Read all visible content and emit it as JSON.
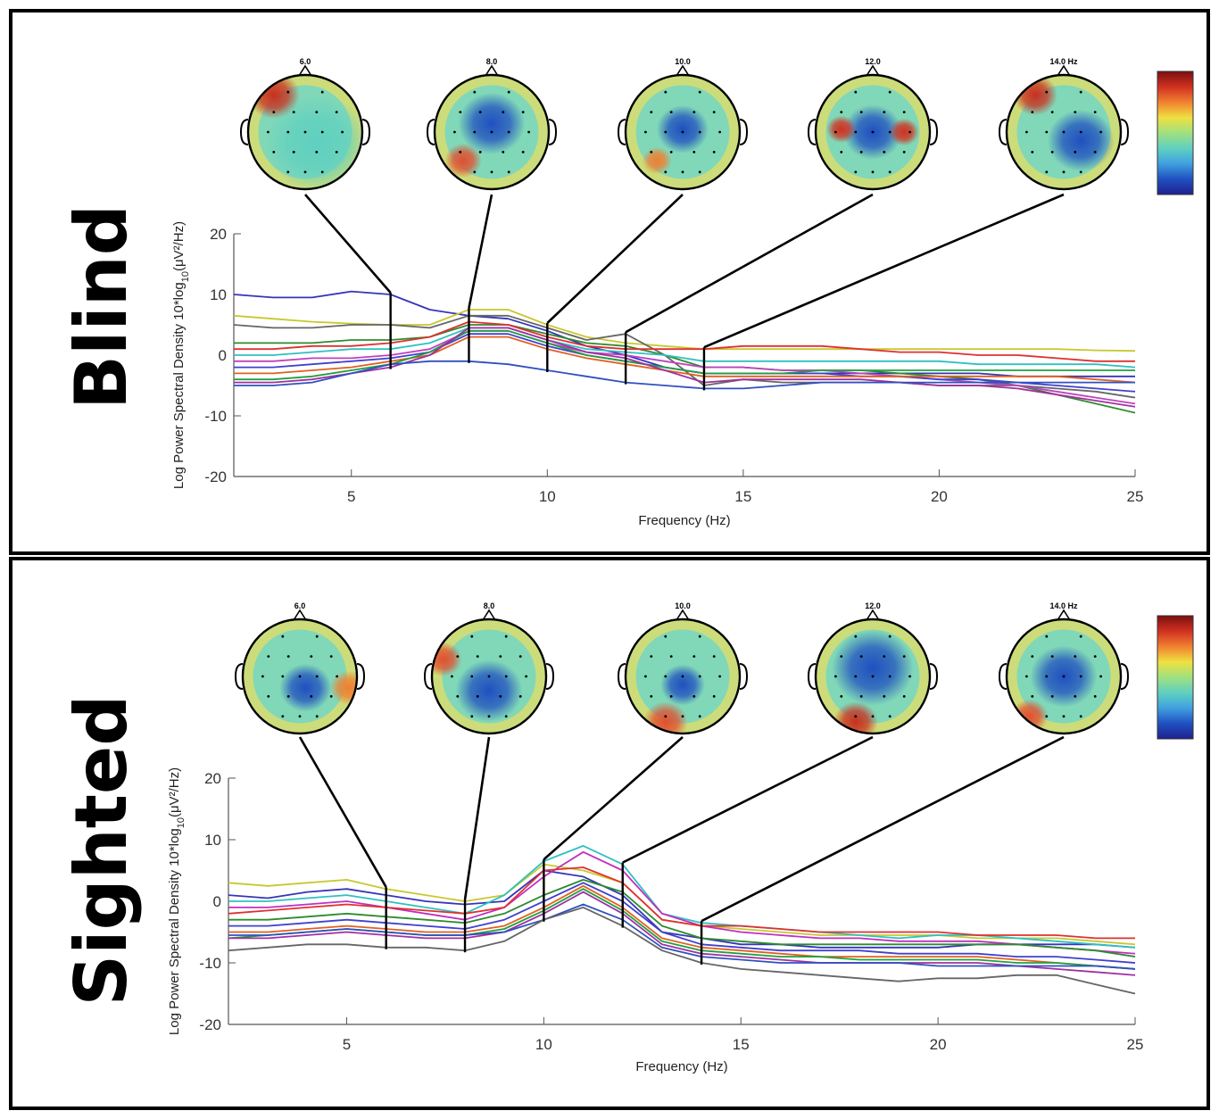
{
  "chart_data": [
    {
      "type": "line",
      "group": "Blind",
      "xlabel": "Frequency (Hz)",
      "ylabel_main": "Log Power Spectral Density 10*log",
      "ylabel_sub": "10",
      "ylabel_tail": "(μV²/Hz)",
      "xlim": [
        2,
        25
      ],
      "ylim": [
        -20,
        20
      ],
      "xticks": [
        5,
        10,
        15,
        20,
        25
      ],
      "yticks": [
        20,
        10,
        0,
        -10,
        -20
      ],
      "xtick_labels": [
        "5",
        "10",
        "15",
        "20",
        "25"
      ],
      "ytick_labels": [
        "20",
        "10",
        "0",
        "-10",
        "-20"
      ],
      "topo_labels": [
        "6.0",
        "8.0",
        "10.0",
        "12.0",
        "14.0 Hz"
      ],
      "topo_freqs": [
        6,
        8,
        10,
        12,
        14
      ],
      "x": [
        2,
        3,
        4,
        5,
        6,
        7,
        8,
        9,
        10,
        11,
        12,
        13,
        14,
        15,
        16,
        17,
        18,
        19,
        20,
        21,
        22,
        23,
        24,
        25
      ],
      "series": [
        {
          "color": "#3535b8",
          "values": [
            10,
            9.5,
            9.5,
            10.5,
            10,
            7.5,
            6.5,
            6,
            4,
            1.5,
            0,
            -2,
            -3,
            -3,
            -3,
            -3,
            -3,
            -3,
            -3,
            -3,
            -3.5,
            -3.5,
            -3.5,
            -3.5
          ]
        },
        {
          "color": "#c8c830",
          "values": [
            6.5,
            6,
            5.5,
            5.2,
            5,
            5,
            7.5,
            7.5,
            5,
            3,
            2,
            1.5,
            1,
            1,
            1,
            1,
            1,
            1,
            1,
            1,
            1,
            1,
            0.8,
            0.7
          ]
        },
        {
          "color": "#666666",
          "values": [
            5,
            4.5,
            4.5,
            5,
            5,
            4.5,
            6.5,
            6.5,
            4.5,
            2.5,
            3.5,
            0,
            -5,
            -4,
            -4.5,
            -4.5,
            -4.5,
            -4.5,
            -5,
            -5,
            -5,
            -5.5,
            -6,
            -7
          ]
        },
        {
          "color": "#2e8b2e",
          "values": [
            2,
            2,
            2,
            2.5,
            2.5,
            3,
            5,
            5,
            3.5,
            2,
            1.5,
            0,
            -2,
            -2,
            -2.5,
            -2.5,
            -2.5,
            -3,
            -3.5,
            -4,
            -5,
            -6.5,
            -8,
            -9.5
          ]
        },
        {
          "color": "#e03030",
          "values": [
            1,
            1,
            1.5,
            1.5,
            2,
            3,
            5.5,
            5,
            3,
            1.5,
            1,
            1,
            1,
            1.5,
            1.5,
            1.5,
            1,
            0.5,
            0.5,
            0,
            0,
            -0.5,
            -1,
            -1
          ]
        },
        {
          "color": "#30c0c0",
          "values": [
            0,
            0,
            0.5,
            1,
            1,
            2,
            4.5,
            4.5,
            2.5,
            1,
            0.5,
            0,
            -1,
            -1,
            -1,
            -1,
            -1,
            -1,
            -1,
            -1.5,
            -1.5,
            -1.5,
            -1.5,
            -2
          ]
        },
        {
          "color": "#c040c0",
          "values": [
            -1,
            -1,
            -0.5,
            -0.5,
            0,
            1,
            4,
            4,
            2,
            0.5,
            0,
            -1,
            -2,
            -2,
            -2.5,
            -2.5,
            -3,
            -3.5,
            -4,
            -4.5,
            -5,
            -6,
            -7,
            -8
          ]
        },
        {
          "color": "#4040d0",
          "values": [
            -2,
            -2,
            -1.5,
            -1,
            -0.5,
            0.5,
            3.5,
            3.5,
            1.5,
            0,
            -1,
            -2,
            -3,
            -3,
            -3,
            -3,
            -3.5,
            -3.5,
            -4,
            -4,
            -4.5,
            -5,
            -5.5,
            -6
          ]
        },
        {
          "color": "#e06020",
          "values": [
            -3,
            -3,
            -2.5,
            -2,
            -1,
            0,
            3,
            3,
            1,
            -0.5,
            -1.5,
            -2.5,
            -3.5,
            -3.5,
            -3.5,
            -3.5,
            -3.5,
            -3.5,
            -3.5,
            -3.5,
            -3.5,
            -3.5,
            -4,
            -4.5
          ]
        },
        {
          "color": "#20a040",
          "values": [
            -4,
            -4,
            -3.5,
            -2.5,
            -1.5,
            0.5,
            4,
            4,
            2,
            0,
            -1,
            -2,
            -3,
            -3,
            -3,
            -2.5,
            -2.5,
            -2.5,
            -2.5,
            -2.5,
            -2.5,
            -2.5,
            -2.5,
            -2.5
          ]
        },
        {
          "color": "#a030a0",
          "values": [
            -4.5,
            -4.5,
            -4,
            -3,
            -2,
            0,
            4.5,
            4.5,
            2.5,
            0.5,
            -0.5,
            -2.5,
            -4.5,
            -4,
            -4,
            -4,
            -4,
            -4.5,
            -5,
            -5,
            -5.5,
            -6.5,
            -7.5,
            -8.5
          ]
        },
        {
          "color": "#3050c0",
          "values": [
            -5,
            -5,
            -4.5,
            -3,
            -1.5,
            -1,
            -1,
            -1.5,
            -2.5,
            -3.5,
            -4.5,
            -5,
            -5.5,
            -5.5,
            -5,
            -4.5,
            -4.5,
            -4.5,
            -4.5,
            -4.5,
            -4.5,
            -4.5,
            -4.5,
            -4.5
          ]
        }
      ]
    },
    {
      "type": "line",
      "group": "Sighted",
      "xlabel": "Frequency (Hz)",
      "ylabel_main": "Log Power Spectral Density 10*log",
      "ylabel_sub": "10",
      "ylabel_tail": "(μV²/Hz)",
      "xlim": [
        2,
        25
      ],
      "ylim": [
        -20,
        20
      ],
      "xticks": [
        5,
        10,
        15,
        20,
        25
      ],
      "yticks": [
        20,
        10,
        0,
        -10,
        -20
      ],
      "xtick_labels": [
        "5",
        "10",
        "15",
        "20",
        "25"
      ],
      "ytick_labels": [
        "20",
        "10",
        "0",
        "-10",
        "-20"
      ],
      "topo_labels": [
        "6.0",
        "8.0",
        "10.0",
        "12.0",
        "14.0 Hz"
      ],
      "topo_freqs": [
        6,
        8,
        10,
        12,
        14
      ],
      "x": [
        2,
        3,
        4,
        5,
        6,
        7,
        8,
        9,
        10,
        11,
        12,
        13,
        14,
        15,
        16,
        17,
        18,
        19,
        20,
        21,
        22,
        23,
        24,
        25
      ],
      "series": [
        {
          "color": "#c8c830",
          "values": [
            3,
            2.5,
            3,
            3.5,
            2,
            1,
            0,
            1,
            6,
            5,
            3,
            -3,
            -4,
            -4.5,
            -5,
            -5.5,
            -5.5,
            -5.5,
            -5.5,
            -6,
            -6,
            -6,
            -6.5,
            -7
          ]
        },
        {
          "color": "#3535b8",
          "values": [
            1,
            0.5,
            1.5,
            2,
            1,
            0,
            -0.5,
            0,
            5,
            4,
            1,
            -5,
            -6,
            -7,
            -7,
            -7.5,
            -7.5,
            -7.5,
            -7.5,
            -7,
            -7,
            -7,
            -7,
            -7.5
          ]
        },
        {
          "color": "#30c0c0",
          "values": [
            0,
            0,
            0.5,
            1,
            0,
            -1,
            -2,
            1,
            6.5,
            9,
            6,
            -2,
            -3.5,
            -4,
            -4.5,
            -5,
            -5.5,
            -6,
            -5.5,
            -5.5,
            -6,
            -6.5,
            -7,
            -7.5
          ]
        },
        {
          "color": "#c030c0",
          "values": [
            -1,
            -1,
            -0.5,
            0,
            -1,
            -2,
            -3,
            -1,
            4,
            8,
            5,
            -2,
            -4,
            -5,
            -5.5,
            -6,
            -6,
            -6.5,
            -6.5,
            -6.5,
            -7,
            -7.5,
            -8,
            -8.5
          ]
        },
        {
          "color": "#e03030",
          "values": [
            -2,
            -1.5,
            -1,
            -0.5,
            -1,
            -1.5,
            -2,
            -1,
            5,
            5.5,
            3,
            -3,
            -4,
            -4,
            -4.5,
            -5,
            -5,
            -5,
            -5,
            -5.5,
            -5.5,
            -5.5,
            -6,
            -6
          ]
        },
        {
          "color": "#2e8b2e",
          "values": [
            -3,
            -3,
            -2.5,
            -2,
            -2.5,
            -3,
            -3.5,
            -2,
            1,
            3.5,
            1.5,
            -4,
            -6,
            -6.5,
            -7,
            -7,
            -7,
            -7,
            -7,
            -7,
            -7,
            -7.5,
            -8,
            -9
          ]
        },
        {
          "color": "#4040d0",
          "values": [
            -4,
            -4,
            -3.5,
            -3,
            -3.5,
            -4,
            -4.5,
            -3,
            0,
            3,
            0,
            -5,
            -7,
            -7.5,
            -8,
            -8,
            -8,
            -8.5,
            -8.5,
            -8.5,
            -9,
            -9,
            -9.5,
            -10
          ]
        },
        {
          "color": "#e06020",
          "values": [
            -5,
            -5,
            -4.5,
            -4,
            -4.5,
            -5,
            -5,
            -4,
            -1,
            2.5,
            -1,
            -6,
            -7.5,
            -8,
            -8.5,
            -9,
            -9,
            -9,
            -9,
            -9,
            -9.5,
            -10,
            -10.5,
            -11
          ]
        },
        {
          "color": "#20a040",
          "values": [
            -6,
            -5.5,
            -5,
            -4.5,
            -5,
            -5.5,
            -5.5,
            -4.5,
            -1.5,
            2,
            -1.5,
            -6.5,
            -8,
            -8.5,
            -9,
            -9,
            -9.5,
            -9.5,
            -9.5,
            -9.5,
            -10,
            -10,
            -10.5,
            -11
          ]
        },
        {
          "color": "#a030a0",
          "values": [
            -6,
            -6,
            -5.5,
            -5,
            -5.5,
            -6,
            -6,
            -5,
            -2,
            1.5,
            -2,
            -7,
            -8.5,
            -9,
            -9.5,
            -10,
            -10,
            -10,
            -10,
            -10,
            -10.5,
            -11,
            -11.5,
            -12
          ]
        },
        {
          "color": "#3050c0",
          "values": [
            -5.5,
            -5.5,
            -5,
            -4.5,
            -5,
            -5.5,
            -5.5,
            -5,
            -3,
            -0.5,
            -3,
            -7.5,
            -9,
            -9.5,
            -10,
            -10,
            -10,
            -10,
            -10.5,
            -10.5,
            -10.5,
            -10.5,
            -10.5,
            -11
          ]
        },
        {
          "color": "#666666",
          "values": [
            -8,
            -7.5,
            -7,
            -7,
            -7.5,
            -7.5,
            -8,
            -6.5,
            -3,
            -1,
            -4,
            -8,
            -10,
            -11,
            -11.5,
            -12,
            -12.5,
            -13,
            -12.5,
            -12.5,
            -12,
            -12,
            -13.5,
            -15
          ]
        }
      ]
    }
  ]
}
